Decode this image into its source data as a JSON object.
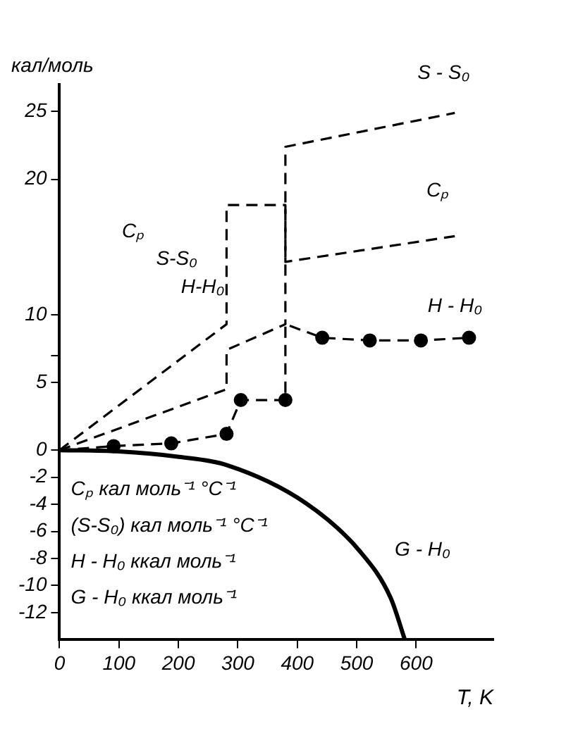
{
  "chart_data": {
    "type": "line",
    "xlabel": "T, K",
    "ylabel": "кал/моль",
    "xlim": [
      0,
      730
    ],
    "xticks": [
      0,
      100,
      200,
      300,
      400,
      500,
      600
    ],
    "ylim": [
      -14,
      27
    ],
    "yticks": [
      -12,
      -10,
      -8,
      -6,
      -4,
      -2,
      0,
      5,
      {
        "value": 7,
        "label": null
      },
      10,
      20,
      25
    ],
    "grid": false,
    "legend": false,
    "series": [
      {
        "name": "Cₚ",
        "color": "#000000",
        "line_style": "dashed",
        "x": [
          0,
          281,
          281,
          380,
          380,
          665
        ],
        "values": [
          0,
          9.3,
          18.1,
          18.1,
          13.9,
          15.8
        ]
      },
      {
        "name": "S - S₀",
        "color": "#000000",
        "line_style": "dashed",
        "x": [
          0,
          281,
          281,
          380,
          380,
          665
        ],
        "values": [
          0,
          4.5,
          7.4,
          9.3,
          22.4,
          24.9
        ]
      },
      {
        "name": "H - H₀",
        "color": "#000000",
        "line_style": "dashed",
        "x": [
          0,
          91,
          188,
          281,
          305,
          380,
          380,
          442,
          522,
          608,
          689
        ],
        "values": [
          0,
          0.3,
          0.5,
          1.2,
          3.7,
          3.7,
          9.3,
          8.3,
          8.1,
          8.1,
          8.3
        ]
      },
      {
        "type": "scatter",
        "color": "#000000",
        "marker": "circle",
        "x": [
          91,
          188,
          281,
          305,
          380,
          442,
          522,
          608,
          689
        ],
        "values": [
          0.3,
          0.5,
          1.2,
          3.7,
          3.7,
          8.3,
          8.1,
          8.1,
          8.3
        ]
      },
      {
        "name": "G - H₀",
        "color": "#000000",
        "line_style": "solid",
        "x": [
          0,
          100,
          201,
          281,
          414,
          504,
          557,
          581
        ],
        "values": [
          0,
          -0.1,
          -0.5,
          -1.1,
          -3.9,
          -7.4,
          -10.9,
          -14
        ]
      }
    ],
    "annotations": [
      "Cₚ",
      "S-S₀",
      "H-H₀",
      "Cₚ кал моль⁻¹ °C⁻¹",
      "(S-S₀) кал моль⁻¹ °C⁻¹",
      "H - H₀ ккал моль⁻¹",
      "G - H₀ ккал моль⁻¹"
    ]
  }
}
